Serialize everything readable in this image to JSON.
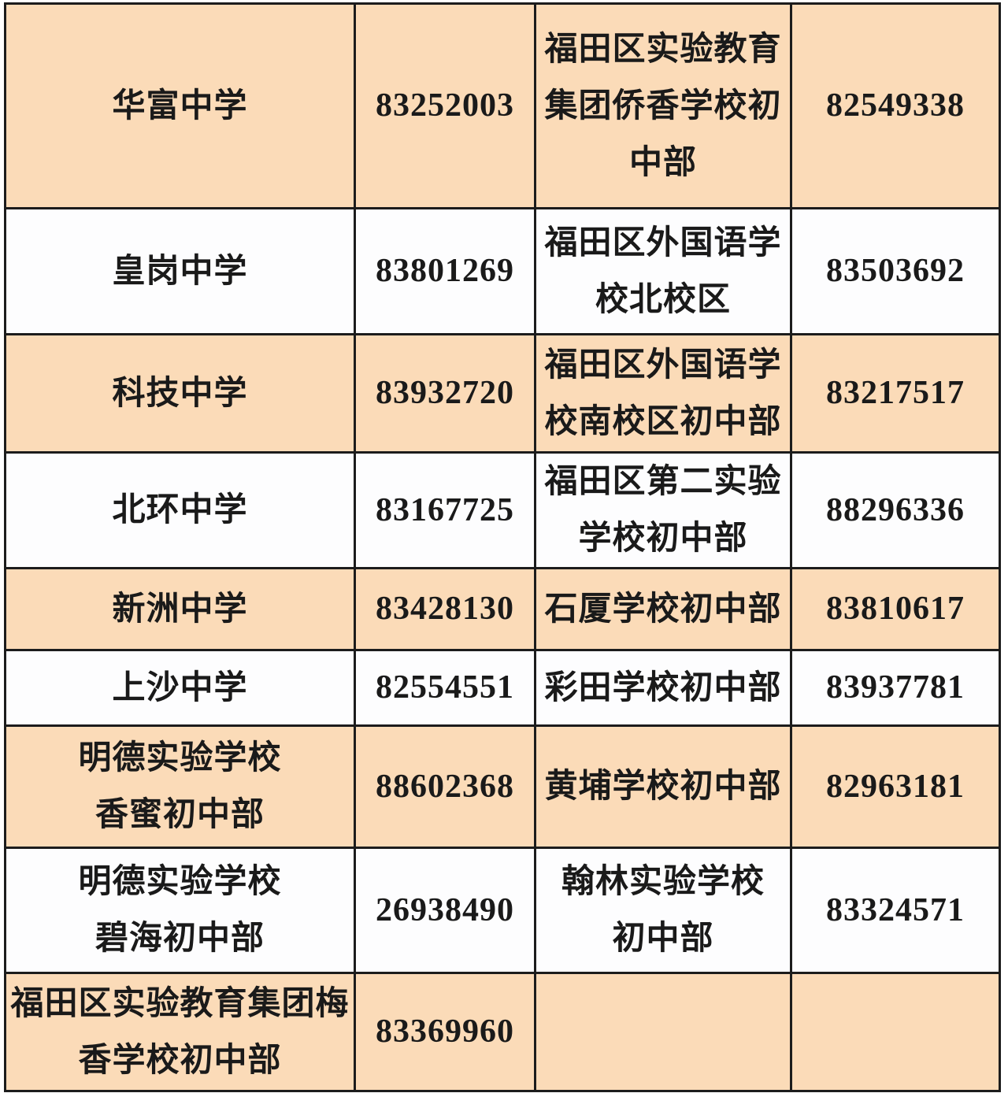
{
  "colors": {
    "row_peach": "#fbdbb8",
    "row_white": "#fdfdfe",
    "border": "#1c1c1c",
    "text": "#1a1a1a"
  },
  "table": {
    "columns": [
      {
        "key": "school_a",
        "kind": "school"
      },
      {
        "key": "phone_a",
        "kind": "phone"
      },
      {
        "key": "school_b",
        "kind": "school"
      },
      {
        "key": "phone_b",
        "kind": "phone"
      }
    ],
    "rows": [
      {
        "school_a": "华富中学",
        "phone_a": "83252003",
        "school_b": "福田区实验教育\n集团侨香学校初\n中部",
        "phone_b": "82549338"
      },
      {
        "school_a": "皇岗中学",
        "phone_a": "83801269",
        "school_b": "福田区外国语学\n校北校区",
        "phone_b": "83503692"
      },
      {
        "school_a": "科技中学",
        "phone_a": "83932720",
        "school_b": "福田区外国语学\n校南校区初中部",
        "phone_b": "83217517"
      },
      {
        "school_a": "北环中学",
        "phone_a": "83167725",
        "school_b": "福田区第二实验\n学校初中部",
        "phone_b": "88296336"
      },
      {
        "school_a": "新洲中学",
        "phone_a": "83428130",
        "school_b": "石厦学校初中部",
        "phone_b": "83810617"
      },
      {
        "school_a": "上沙中学",
        "phone_a": "82554551",
        "school_b": "彩田学校初中部",
        "phone_b": "83937781"
      },
      {
        "school_a": "明德实验学校\n香蜜初中部",
        "phone_a": "88602368",
        "school_b": "黄埔学校初中部",
        "phone_b": "82963181"
      },
      {
        "school_a": "明德实验学校\n碧海初中部",
        "phone_a": "26938490",
        "school_b": "翰林实验学校\n初中部",
        "phone_b": "83324571"
      },
      {
        "school_a": "福田区实验教育集团梅\n香学校初中部",
        "phone_a": "83369960",
        "school_b": "",
        "phone_b": ""
      }
    ]
  }
}
